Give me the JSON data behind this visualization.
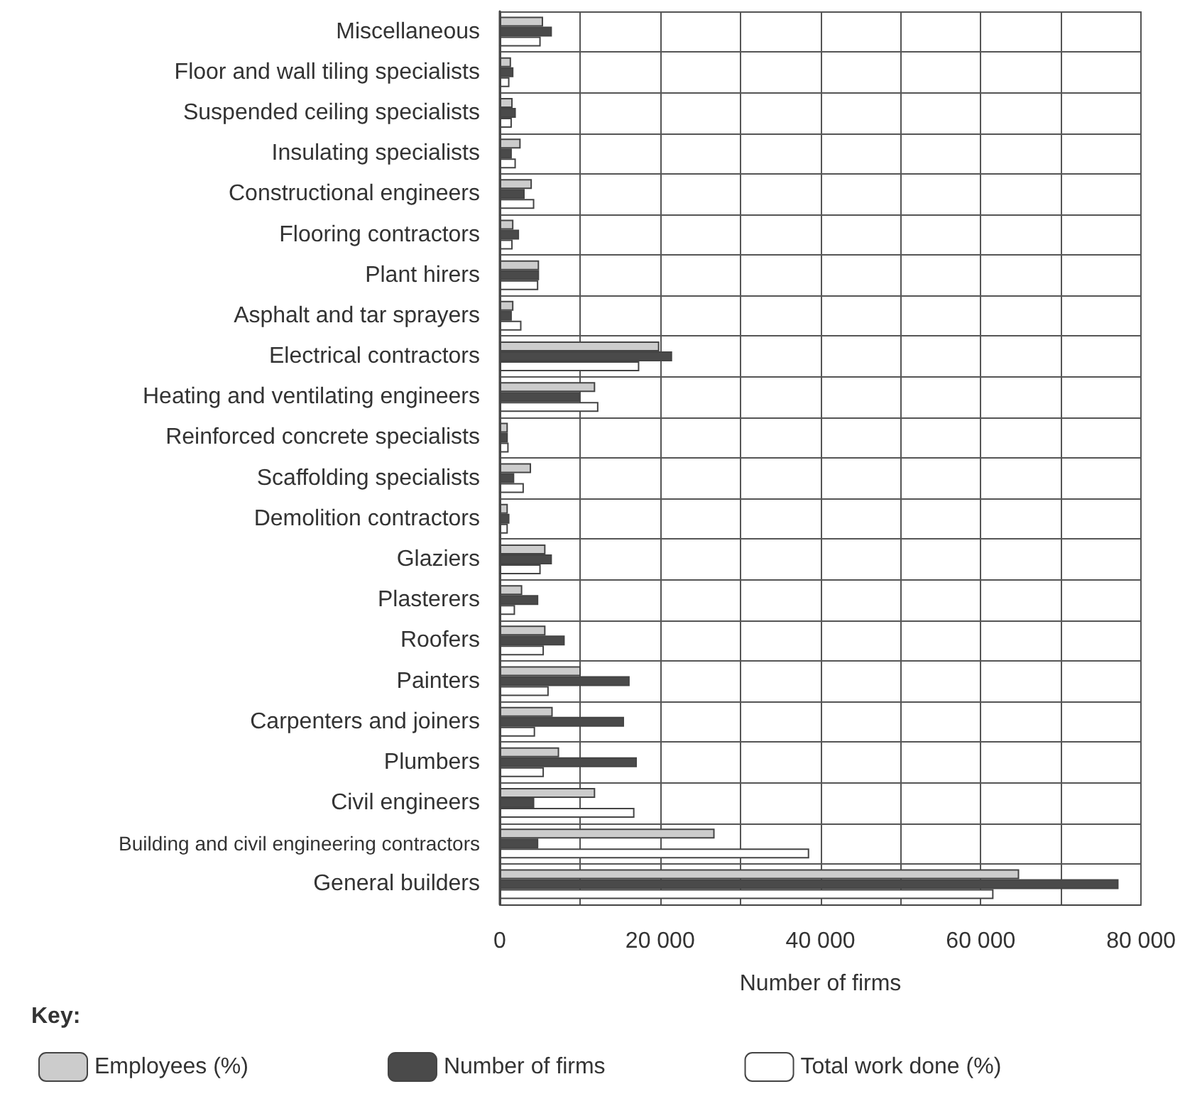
{
  "chart_data": {
    "type": "bar",
    "orientation": "horizontal",
    "xlabel": "Number of firms",
    "legend_title": "Key:",
    "legend": "bottom",
    "grid": true,
    "categories": [
      "Miscellaneous",
      "Floor and wall tiling specialists",
      "Suspended ceiling specialists",
      "Insulating specialists",
      "Constructional engineers",
      "Flooring contractors",
      "Plant hirers",
      "Asphalt and tar sprayers",
      "Electrical contractors",
      "Heating and ventilating engineers",
      "Reinforced concrete specialists",
      "Scaffolding specialists",
      "Demolition contractors",
      "Glaziers",
      "Plasterers",
      "Roofers",
      "Painters",
      "Carpenters and joiners",
      "Plumbers",
      "Civil engineers",
      "Building and civil engineering contractors",
      "General builders"
    ],
    "xlim": [
      0,
      80000
    ],
    "xticks": [
      {
        "value": 0,
        "label": "0"
      },
      {
        "value": 10000,
        "label": null
      },
      {
        "value": 20000,
        "label": "20 000"
      },
      {
        "value": 30000,
        "label": null
      },
      {
        "value": 40000,
        "label": "40 000"
      },
      {
        "value": 50000,
        "label": null
      },
      {
        "value": 60000,
        "label": "60 000"
      },
      {
        "value": 70000,
        "label": null
      },
      {
        "value": 80000,
        "label": "80 000"
      }
    ],
    "series": [
      {
        "name": "Employees (%)",
        "color": "#cccccc",
        "values": [
          5400,
          1400,
          1600,
          2600,
          4000,
          1700,
          4900,
          1700,
          19900,
          11900,
          1000,
          3900,
          1000,
          5700,
          2800,
          5700,
          10100,
          6600,
          7400,
          11900,
          26800,
          64800
        ]
      },
      {
        "name": "Number of firms",
        "color": "#4a4a4a",
        "values": [
          6500,
          1700,
          2000,
          1500,
          3100,
          2400,
          4900,
          1500,
          21500,
          10000,
          1000,
          1800,
          1200,
          6500,
          4800,
          8100,
          16200,
          15500,
          17100,
          4300,
          4800,
          77200
        ]
      },
      {
        "name": "Total work done (%)",
        "color": "#ffffff",
        "values": [
          5100,
          1200,
          1500,
          2000,
          4300,
          1600,
          4800,
          2700,
          17400,
          12300,
          1100,
          3000,
          1000,
          5100,
          1900,
          5500,
          6100,
          4400,
          5500,
          16800,
          38600,
          61600
        ]
      }
    ]
  }
}
